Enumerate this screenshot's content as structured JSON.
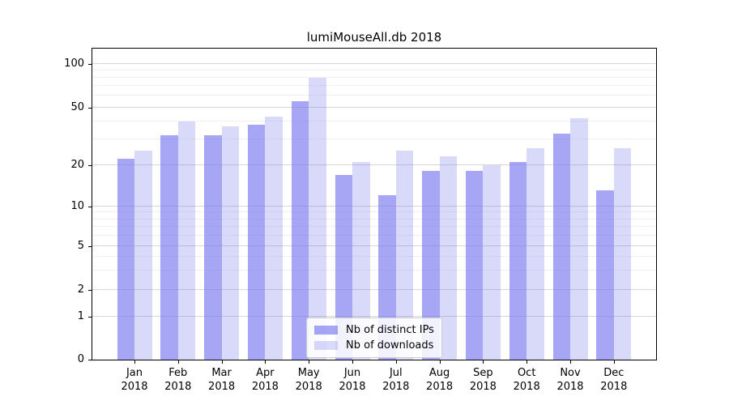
{
  "title": "lumiMouseAll.db 2018",
  "colors": {
    "bar_base": "#7777ee",
    "bar_dark_fill": "rgba(119,119,238,0.65)",
    "bar_light_fill": "rgba(119,119,238,0.28)",
    "grid_major": "#d6d6d6",
    "grid_minor": "#f0f0f0",
    "axis": "#000000"
  },
  "legend": {
    "items": [
      {
        "label": "Nb of distinct IPs",
        "swatch": "rgba(119,119,238,0.65)"
      },
      {
        "label": "Nb of downloads",
        "swatch": "rgba(119,119,238,0.28)"
      }
    ]
  },
  "x_axis": {
    "months": [
      "Jan",
      "Feb",
      "Mar",
      "Apr",
      "May",
      "Jun",
      "Jul",
      "Aug",
      "Sep",
      "Oct",
      "Nov",
      "Dec"
    ],
    "year": "2018"
  },
  "y_axis": {
    "ticks": [
      0,
      1,
      2,
      5,
      10,
      20,
      50,
      100
    ]
  },
  "chart_data": {
    "type": "bar",
    "title": "lumiMouseAll.db 2018",
    "categories": [
      "Jan 2018",
      "Feb 2018",
      "Mar 2018",
      "Apr 2018",
      "May 2018",
      "Jun 2018",
      "Jul 2018",
      "Aug 2018",
      "Sep 2018",
      "Oct 2018",
      "Nov 2018",
      "Dec 2018"
    ],
    "series": [
      {
        "name": "Nb of distinct IPs",
        "color": "#7777ee",
        "alpha": 0.65,
        "values": [
          22,
          32,
          32,
          38,
          55,
          17,
          12,
          18,
          18,
          21,
          33,
          13
        ]
      },
      {
        "name": "Nb of downloads",
        "color": "#7777ee",
        "alpha": 0.28,
        "values": [
          25,
          40,
          37,
          43,
          80,
          21,
          25,
          23,
          20,
          26,
          42,
          26
        ]
      }
    ],
    "xlabel": "",
    "ylabel": "",
    "yscale": "symlog",
    "y_ticks": [
      0,
      1,
      2,
      5,
      10,
      20,
      50,
      100
    ],
    "ylim": [
      0,
      115
    ],
    "grid": true,
    "legend_position": "lower center"
  }
}
